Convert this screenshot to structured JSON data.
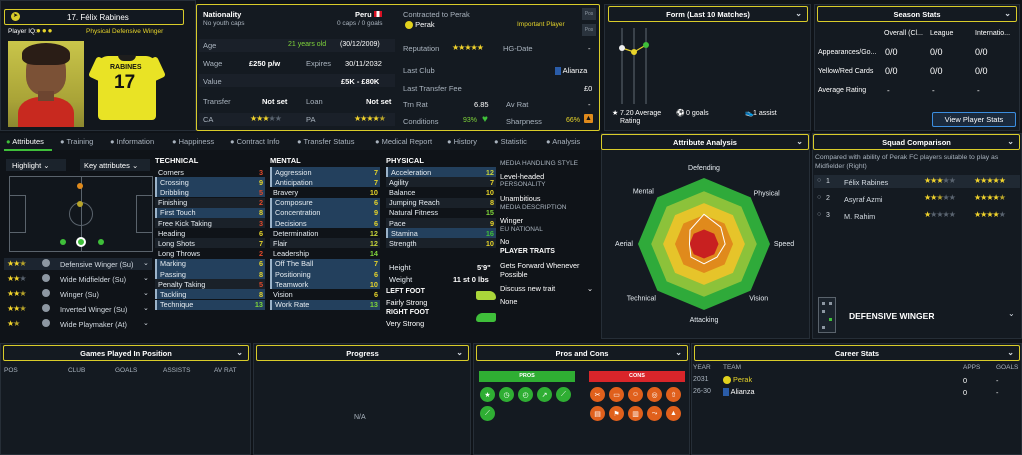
{
  "player": {
    "number_name": "17. Félix Rabines",
    "iq_label": "Player IQ:",
    "role": "Physical Defensive Winger",
    "shirt_name": "RABINES",
    "shirt_number": "17"
  },
  "info": {
    "nationality_label": "Nationality",
    "nationality": "Peru",
    "youth_caps": "No youth caps",
    "caps": "0 caps / 0 goals",
    "age_label": "Age",
    "age": "21 years old",
    "dob": "(30/12/2009)",
    "wage_label": "Wage",
    "wage": "£250 p/w",
    "expires_label": "Expires",
    "expires": "30/11/2032",
    "value_label": "Value",
    "value": "£5K - £80K",
    "transfer_label": "Transfer",
    "transfer": "Not set",
    "loan_label": "Loan",
    "loan": "Not set",
    "ca_label": "CA",
    "pa_label": "PA",
    "ca_stars": 3,
    "pa_stars": 4.5,
    "contracted_label": "Contracted to Perak",
    "club": "Perak",
    "squad_status": "Important Player",
    "reputation_label": "Reputation",
    "reputation_stars": 5,
    "hg_label": "HG-Date",
    "hg_value": "-",
    "last_club_label": "Last Club",
    "last_club": "Alianza",
    "ltf_label": "Last Transfer Fee",
    "ltf": "£0",
    "trn_rat_label": "Trn Rat",
    "trn_rat": "6.85",
    "av_rat_label": "Av Rat",
    "av_rat": "-",
    "conditions_label": "Conditions",
    "conditions": "93%",
    "sharpness_label": "Sharpness",
    "sharpness": "66%",
    "btn1": "Pos",
    "btn2": "Pos"
  },
  "form": {
    "title": "Form (Last 10 Matches)",
    "avg": "7.20 Average Rating",
    "goals": "0 goals",
    "assists": "1 assist"
  },
  "season": {
    "title": "Season Stats",
    "cols": [
      "Overall (Cl...",
      "League",
      "Internatio..."
    ],
    "rows": [
      {
        "label": "Appearances/Go...",
        "v": [
          "0/0",
          "0/0",
          "0/0"
        ]
      },
      {
        "label": "Yellow/Red Cards",
        "v": [
          "0/0",
          "0/0",
          "0/0"
        ]
      },
      {
        "label": "Average Rating",
        "v": [
          "-",
          "-",
          "-"
        ]
      }
    ],
    "button": "View Player Stats"
  },
  "tabs": [
    "Attributes",
    "Training",
    "Information",
    "Happiness",
    "Contract Info",
    "Transfer Status",
    "Medical Report",
    "History",
    "Statistic",
    "Analysis"
  ],
  "pitch": {
    "highlight": "Highlight",
    "key_attr": "Key attributes",
    "roles": [
      {
        "stars": 3,
        "name": "Defensive Winger (Su)"
      },
      {
        "stars": 2.5,
        "name": "Wide Midfielder (Su)"
      },
      {
        "stars": 2.5,
        "name": "Winger (Su)"
      },
      {
        "stars": 2.5,
        "name": "Inverted Winger (Su)"
      },
      {
        "stars": 1.5,
        "name": "Wide Playmaker (At)"
      }
    ]
  },
  "technical": {
    "title": "TECHNICAL",
    "attrs": [
      [
        "Corners",
        "3"
      ],
      [
        "Crossing",
        "9"
      ],
      [
        "Dribbling",
        "5"
      ],
      [
        "Finishing",
        "2"
      ],
      [
        "First Touch",
        "8"
      ],
      [
        "Free Kick Taking",
        "3"
      ],
      [
        "Heading",
        "6"
      ],
      [
        "Long Shots",
        "7"
      ],
      [
        "Long Throws",
        "2"
      ],
      [
        "Marking",
        "6"
      ],
      [
        "Passing",
        "8"
      ],
      [
        "Penalty Taking",
        "5"
      ],
      [
        "Tackling",
        "8"
      ],
      [
        "Technique",
        "13"
      ]
    ]
  },
  "mental": {
    "title": "MENTAL",
    "attrs": [
      [
        "Aggression",
        "7"
      ],
      [
        "Anticipation",
        "7"
      ],
      [
        "Bravery",
        "10"
      ],
      [
        "Composure",
        "6"
      ],
      [
        "Concentration",
        "9"
      ],
      [
        "Decisions",
        "6"
      ],
      [
        "Determination",
        "12"
      ],
      [
        "Flair",
        "12"
      ],
      [
        "Leadership",
        "14"
      ],
      [
        "Off The Ball",
        "7"
      ],
      [
        "Positioning",
        "6"
      ],
      [
        "Teamwork",
        "10"
      ],
      [
        "Vision",
        "6"
      ],
      [
        "Work Rate",
        "13"
      ]
    ]
  },
  "physical": {
    "title": "PHYSICAL",
    "attrs": [
      [
        "Acceleration",
        "12"
      ],
      [
        "Agility",
        "7"
      ],
      [
        "Balance",
        "10"
      ],
      [
        "Jumping Reach",
        "8"
      ],
      [
        "Natural Fitness",
        "15"
      ],
      [
        "Pace",
        "9"
      ],
      [
        "Stamina",
        "16"
      ],
      [
        "Strength",
        "10"
      ]
    ],
    "height_label": "Height",
    "height": "5'9\"",
    "weight_label": "Weight",
    "weight": "11 st 0 lbs",
    "left_foot_label": "LEFT FOOT",
    "left_foot": "Fairly Strong",
    "right_foot_label": "RIGHT FOOT",
    "right_foot": "Very Strong"
  },
  "media": {
    "style_label": "MEDIA HANDLING STYLE",
    "style": "Level-headed",
    "personality_label": "PERSONALITY",
    "personality": "Unambitious",
    "desc_label": "MEDIA DESCRIPTION",
    "desc": "Winger",
    "eu_label": "EU NATIONAL",
    "eu": "No",
    "traits_label": "PLAYER TRAITS",
    "trait": "Gets Forward Whenever Possible",
    "discuss": "Discuss new trait",
    "none": "None"
  },
  "analysis": {
    "title": "Attribute Analysis",
    "labels": [
      "Defending",
      "Physical",
      "Speed",
      "Vision",
      "Attacking",
      "Technical",
      "Aerial",
      "Mental"
    ],
    "values": [
      0.45,
      0.36,
      0.32,
      0.28,
      0.3,
      0.28,
      0.22,
      0.3
    ]
  },
  "squad": {
    "title": "Squad Comparison",
    "desc": "Compared with ability of Perak FC players suitable to play as Midfielder (Right)",
    "rows": [
      {
        "rank": "1",
        "name": "Félix Rabines",
        "ca": 3,
        "pa": 5
      },
      {
        "rank": "2",
        "name": "Asyraf Azmi",
        "ca": 2.5,
        "pa": 4.5
      },
      {
        "rank": "3",
        "name": "M. Rahim",
        "ca": 1,
        "pa": 4
      }
    ],
    "position": "DEFENSIVE WINGER"
  },
  "games": {
    "title": "Games Played In Position",
    "cols": [
      "POS",
      "CLUB",
      "GOALS",
      "ASSISTS",
      "AV RAT"
    ]
  },
  "progress": {
    "title": "Progress",
    "na": "N/A"
  },
  "proscons": {
    "title": "Pros and Cons",
    "pros": "PROS",
    "cons": "CONS"
  },
  "career": {
    "title": "Career Stats",
    "cols": [
      "YEAR",
      "TEAM",
      "APPS",
      "GOALS"
    ],
    "rows": [
      {
        "year": "2031",
        "team": "Perak",
        "apps": "0",
        "goals": "-"
      },
      {
        "year": "26-30",
        "team": "Alianza",
        "apps": "0",
        "goals": "-"
      }
    ]
  },
  "colors": {
    "accent": "#d9cc2a",
    "green": "#7fd43a",
    "panel": "#141a21"
  }
}
